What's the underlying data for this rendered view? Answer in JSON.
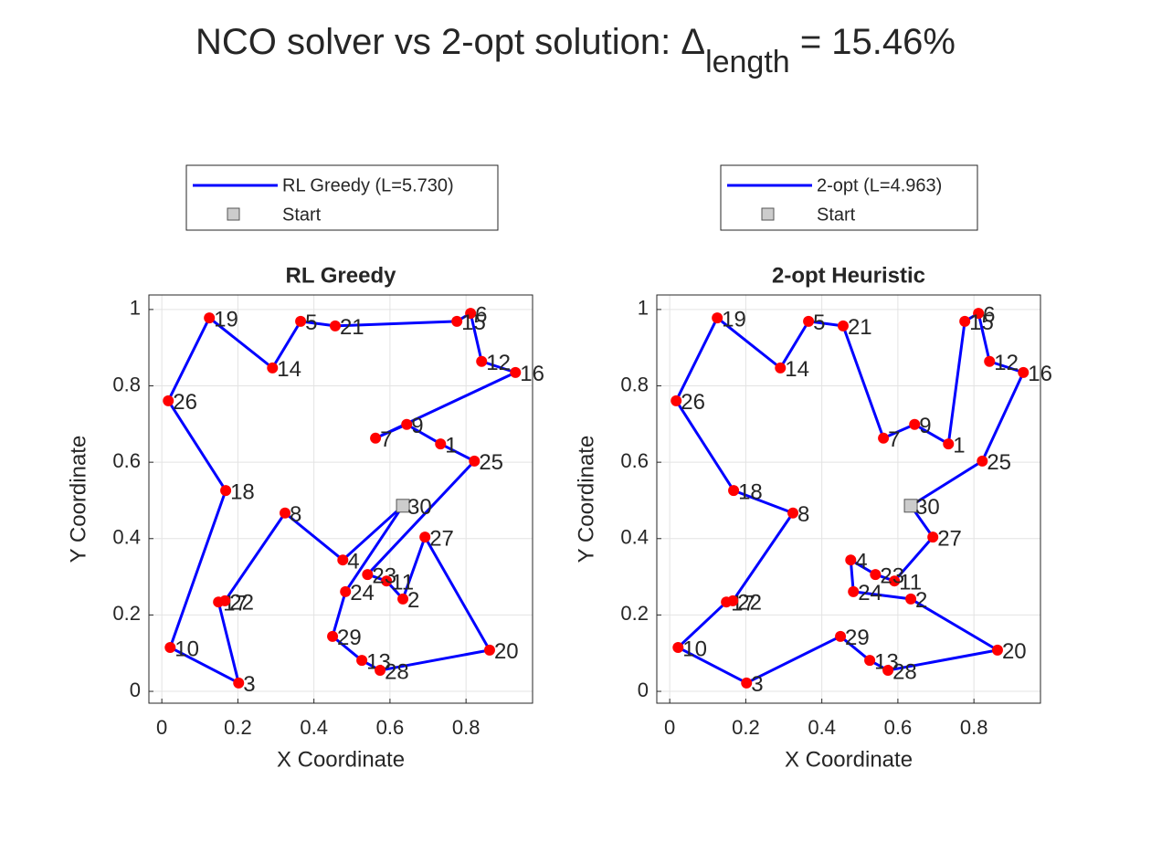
{
  "title": {
    "main": "NCO solver vs 2-opt solution: Δ",
    "subscript": "length",
    "suffix": " = 15.46%"
  },
  "chart_data": [
    {
      "type": "tour",
      "title": "RL Greedy",
      "xlabel": "X Coordinate",
      "ylabel": "Y Coordinate",
      "line_name": "RL Greedy (L=5.730)",
      "start_name": "Start",
      "line_color": "#0000ff",
      "point_color": "#ff0000",
      "start_color": "#cccccc",
      "labels": [
        "1",
        "2",
        "3",
        "4",
        "5",
        "6",
        "7",
        "8",
        "9",
        "10",
        "11",
        "12",
        "13",
        "14",
        "15",
        "16",
        "17",
        "18",
        "19",
        "20",
        "21",
        "22",
        "23",
        "24",
        "25",
        "26",
        "27",
        "28",
        "29",
        "30"
      ],
      "x": [
        0.733,
        0.634,
        0.202,
        0.476,
        0.365,
        0.812,
        0.562,
        0.324,
        0.644,
        0.022,
        0.591,
        0.841,
        0.526,
        0.291,
        0.776,
        0.93,
        0.149,
        0.168,
        0.125,
        0.862,
        0.456,
        0.166,
        0.541,
        0.483,
        0.822,
        0.017,
        0.692,
        0.574,
        0.449,
        0.634
      ],
      "y": [
        0.648,
        0.242,
        0.022,
        0.344,
        0.969,
        0.99,
        0.663,
        0.467,
        0.699,
        0.115,
        0.289,
        0.864,
        0.081,
        0.847,
        0.969,
        0.835,
        0.234,
        0.526,
        0.978,
        0.108,
        0.957,
        0.237,
        0.306,
        0.261,
        0.603,
        0.761,
        0.404,
        0.055,
        0.144,
        0.486
      ],
      "tour": [
        30,
        4,
        8,
        22,
        17,
        3,
        10,
        18,
        26,
        19,
        14,
        5,
        21,
        15,
        6,
        12,
        16,
        7,
        9,
        1,
        25,
        23,
        11,
        2,
        27,
        20,
        28,
        13,
        29,
        24,
        30
      ],
      "start": 30,
      "xlim": [
        -0.034,
        0.975
      ],
      "ylim": [
        -0.031,
        1.038
      ],
      "xticks": [
        0,
        0.2,
        0.4,
        0.6,
        0.8
      ],
      "yticks": [
        0,
        0.2,
        0.4,
        0.6,
        0.8,
        1
      ],
      "grid": true,
      "legend": "outside-top"
    },
    {
      "type": "tour",
      "title": "2-opt Heuristic",
      "xlabel": "X Coordinate",
      "ylabel": "Y Coordinate",
      "line_name": "2-opt (L=4.963)",
      "start_name": "Start",
      "line_color": "#0000ff",
      "point_color": "#ff0000",
      "start_color": "#cccccc",
      "labels": [
        "1",
        "2",
        "3",
        "4",
        "5",
        "6",
        "7",
        "8",
        "9",
        "10",
        "11",
        "12",
        "13",
        "14",
        "15",
        "16",
        "17",
        "18",
        "19",
        "20",
        "21",
        "22",
        "23",
        "24",
        "25",
        "26",
        "27",
        "28",
        "29",
        "30"
      ],
      "x": [
        0.733,
        0.634,
        0.202,
        0.476,
        0.365,
        0.812,
        0.562,
        0.324,
        0.644,
        0.022,
        0.591,
        0.841,
        0.526,
        0.291,
        0.776,
        0.93,
        0.149,
        0.168,
        0.125,
        0.862,
        0.456,
        0.166,
        0.541,
        0.483,
        0.822,
        0.017,
        0.692,
        0.574,
        0.449,
        0.634
      ],
      "y": [
        0.648,
        0.242,
        0.022,
        0.344,
        0.969,
        0.99,
        0.663,
        0.467,
        0.699,
        0.115,
        0.289,
        0.864,
        0.081,
        0.847,
        0.969,
        0.835,
        0.234,
        0.526,
        0.978,
        0.108,
        0.957,
        0.237,
        0.306,
        0.261,
        0.603,
        0.761,
        0.404,
        0.055,
        0.144,
        0.486
      ],
      "tour": [
        30,
        25,
        16,
        12,
        6,
        15,
        1,
        9,
        7,
        21,
        5,
        14,
        19,
        26,
        18,
        8,
        22,
        17,
        10,
        3,
        29,
        13,
        28,
        20,
        2,
        24,
        4,
        23,
        11,
        27,
        30
      ],
      "start": 30,
      "xlim": [
        -0.034,
        0.975
      ],
      "ylim": [
        -0.031,
        1.038
      ],
      "xticks": [
        0,
        0.2,
        0.4,
        0.6,
        0.8
      ],
      "yticks": [
        0,
        0.2,
        0.4,
        0.6,
        0.8,
        1
      ],
      "grid": true,
      "legend": "outside-top"
    }
  ]
}
